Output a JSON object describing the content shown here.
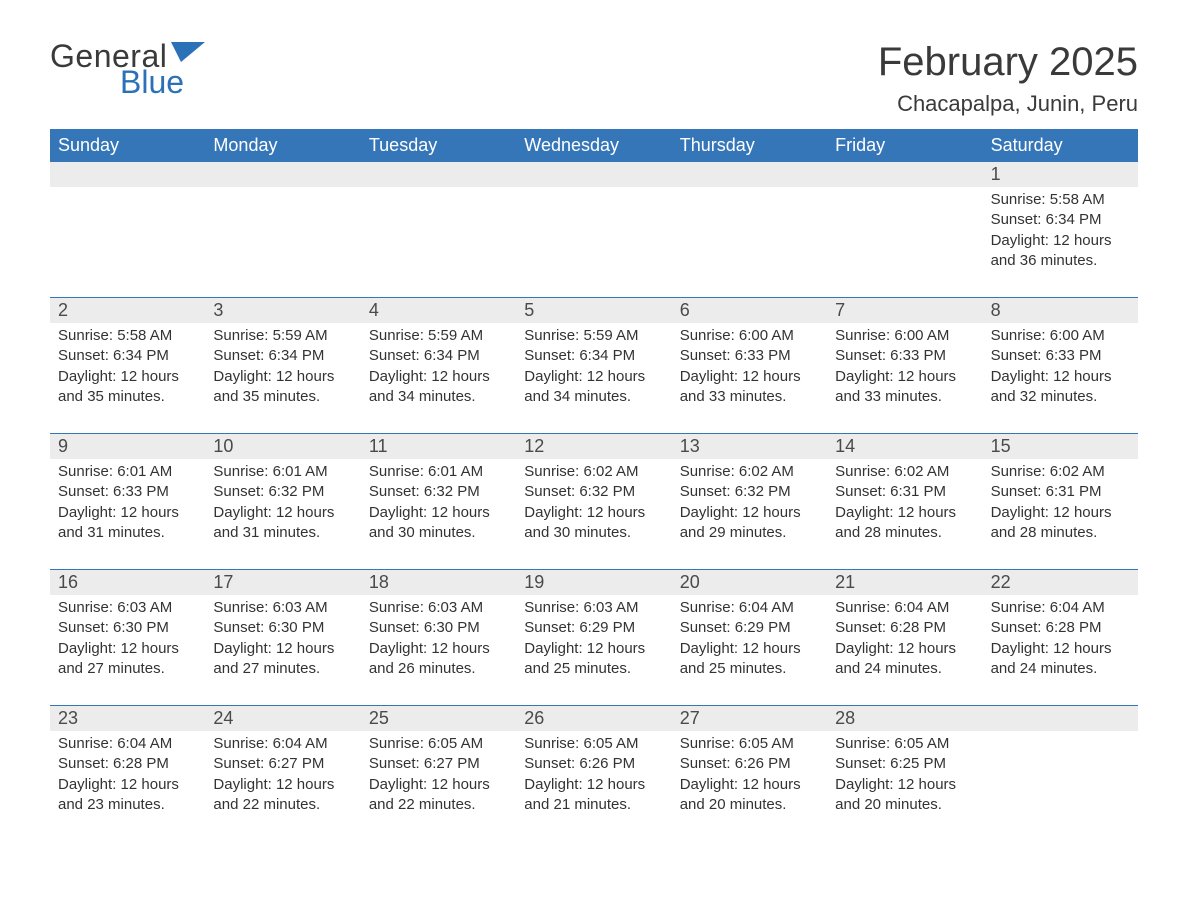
{
  "logo": {
    "general": "General",
    "blue": "Blue",
    "flag_color": "#2b71b8"
  },
  "title": "February 2025",
  "location": "Chacapalpa, Junin, Peru",
  "colors": {
    "header_bg": "#3576b9",
    "header_text": "#ffffff",
    "strip_bg": "#ececec",
    "strip_border": "#3576b9",
    "body_text": "#333333",
    "daynum_text": "#4a4a4a",
    "page_bg": "#ffffff"
  },
  "typography": {
    "title_fontsize": 40,
    "location_fontsize": 22,
    "header_fontsize": 18,
    "daynum_fontsize": 18,
    "body_fontsize": 15
  },
  "weekdays": [
    "Sunday",
    "Monday",
    "Tuesday",
    "Wednesday",
    "Thursday",
    "Friday",
    "Saturday"
  ],
  "calendar": {
    "type": "table",
    "columns": 7,
    "rows": 5,
    "start_weekday_index": 6,
    "days_in_month": 28
  },
  "days": {
    "1": {
      "sunrise": "5:58 AM",
      "sunset": "6:34 PM",
      "daylight": "12 hours and 36 minutes."
    },
    "2": {
      "sunrise": "5:58 AM",
      "sunset": "6:34 PM",
      "daylight": "12 hours and 35 minutes."
    },
    "3": {
      "sunrise": "5:59 AM",
      "sunset": "6:34 PM",
      "daylight": "12 hours and 35 minutes."
    },
    "4": {
      "sunrise": "5:59 AM",
      "sunset": "6:34 PM",
      "daylight": "12 hours and 34 minutes."
    },
    "5": {
      "sunrise": "5:59 AM",
      "sunset": "6:34 PM",
      "daylight": "12 hours and 34 minutes."
    },
    "6": {
      "sunrise": "6:00 AM",
      "sunset": "6:33 PM",
      "daylight": "12 hours and 33 minutes."
    },
    "7": {
      "sunrise": "6:00 AM",
      "sunset": "6:33 PM",
      "daylight": "12 hours and 33 minutes."
    },
    "8": {
      "sunrise": "6:00 AM",
      "sunset": "6:33 PM",
      "daylight": "12 hours and 32 minutes."
    },
    "9": {
      "sunrise": "6:01 AM",
      "sunset": "6:33 PM",
      "daylight": "12 hours and 31 minutes."
    },
    "10": {
      "sunrise": "6:01 AM",
      "sunset": "6:32 PM",
      "daylight": "12 hours and 31 minutes."
    },
    "11": {
      "sunrise": "6:01 AM",
      "sunset": "6:32 PM",
      "daylight": "12 hours and 30 minutes."
    },
    "12": {
      "sunrise": "6:02 AM",
      "sunset": "6:32 PM",
      "daylight": "12 hours and 30 minutes."
    },
    "13": {
      "sunrise": "6:02 AM",
      "sunset": "6:32 PM",
      "daylight": "12 hours and 29 minutes."
    },
    "14": {
      "sunrise": "6:02 AM",
      "sunset": "6:31 PM",
      "daylight": "12 hours and 28 minutes."
    },
    "15": {
      "sunrise": "6:02 AM",
      "sunset": "6:31 PM",
      "daylight": "12 hours and 28 minutes."
    },
    "16": {
      "sunrise": "6:03 AM",
      "sunset": "6:30 PM",
      "daylight": "12 hours and 27 minutes."
    },
    "17": {
      "sunrise": "6:03 AM",
      "sunset": "6:30 PM",
      "daylight": "12 hours and 27 minutes."
    },
    "18": {
      "sunrise": "6:03 AM",
      "sunset": "6:30 PM",
      "daylight": "12 hours and 26 minutes."
    },
    "19": {
      "sunrise": "6:03 AM",
      "sunset": "6:29 PM",
      "daylight": "12 hours and 25 minutes."
    },
    "20": {
      "sunrise": "6:04 AM",
      "sunset": "6:29 PM",
      "daylight": "12 hours and 25 minutes."
    },
    "21": {
      "sunrise": "6:04 AM",
      "sunset": "6:28 PM",
      "daylight": "12 hours and 24 minutes."
    },
    "22": {
      "sunrise": "6:04 AM",
      "sunset": "6:28 PM",
      "daylight": "12 hours and 24 minutes."
    },
    "23": {
      "sunrise": "6:04 AM",
      "sunset": "6:28 PM",
      "daylight": "12 hours and 23 minutes."
    },
    "24": {
      "sunrise": "6:04 AM",
      "sunset": "6:27 PM",
      "daylight": "12 hours and 22 minutes."
    },
    "25": {
      "sunrise": "6:05 AM",
      "sunset": "6:27 PM",
      "daylight": "12 hours and 22 minutes."
    },
    "26": {
      "sunrise": "6:05 AM",
      "sunset": "6:26 PM",
      "daylight": "12 hours and 21 minutes."
    },
    "27": {
      "sunrise": "6:05 AM",
      "sunset": "6:26 PM",
      "daylight": "12 hours and 20 minutes."
    },
    "28": {
      "sunrise": "6:05 AM",
      "sunset": "6:25 PM",
      "daylight": "12 hours and 20 minutes."
    }
  },
  "labels": {
    "sunrise": "Sunrise: ",
    "sunset": "Sunset: ",
    "daylight": "Daylight: "
  }
}
